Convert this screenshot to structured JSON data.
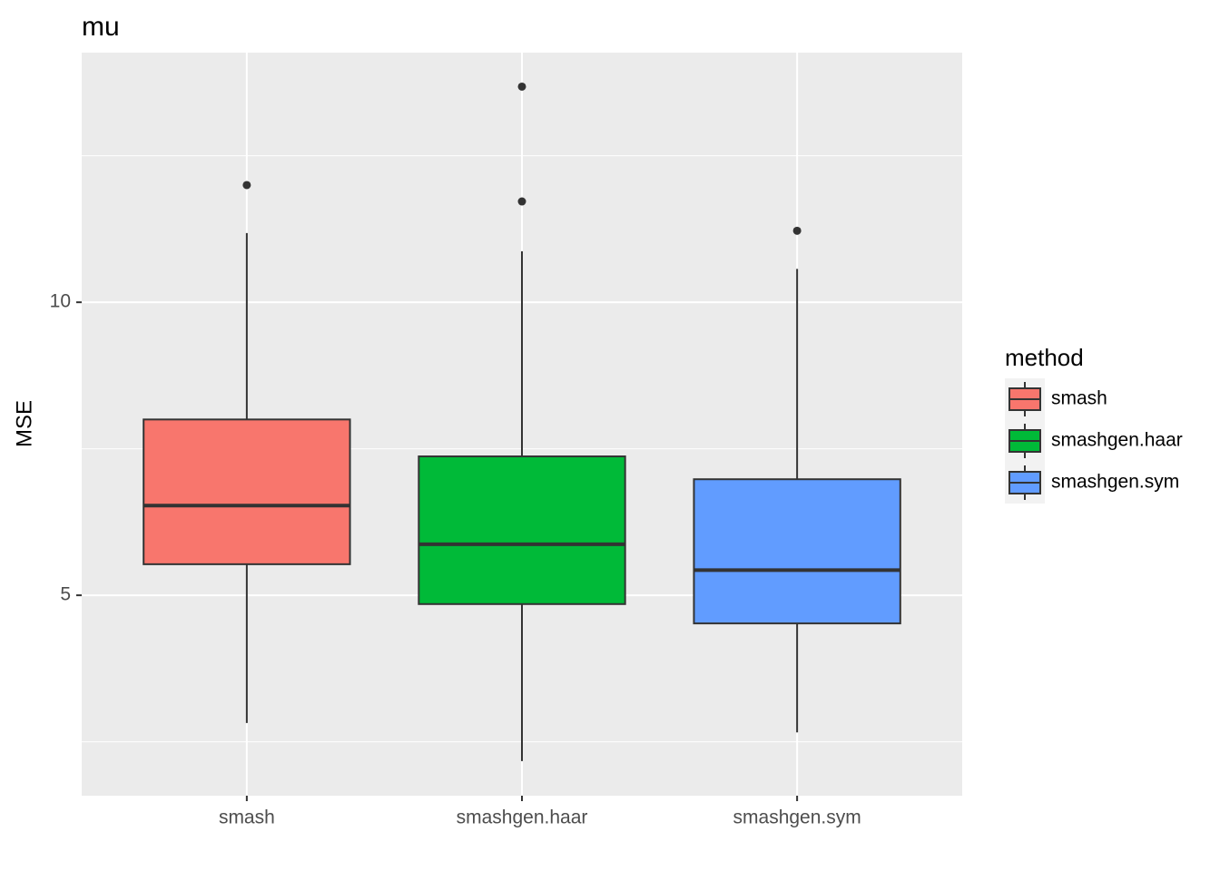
{
  "chart_data": {
    "type": "box",
    "title": "mu",
    "y_label": "MSE",
    "legend_title": "method",
    "categories": [
      "smash",
      "smashgen.haar",
      "smashgen.sym"
    ],
    "colors": [
      "#f8766d",
      "#00ba38",
      "#619cff"
    ],
    "boxes": [
      {
        "min": 2.82,
        "q1": 5.53,
        "median": 6.53,
        "q3": 8.0,
        "max": 11.18,
        "outliers": [
          12.0
        ]
      },
      {
        "min": 2.17,
        "q1": 4.85,
        "median": 5.87,
        "q3": 7.37,
        "max": 10.87,
        "outliers": [
          13.68,
          11.72
        ]
      },
      {
        "min": 2.66,
        "q1": 4.52,
        "median": 5.43,
        "q3": 6.98,
        "max": 10.57,
        "outliers": [
          11.22
        ]
      }
    ],
    "ylim": [
      1.58,
      14.26
    ],
    "yticks": [
      5,
      10
    ],
    "minor_yticks": [
      2.5,
      7.5,
      12.5
    ],
    "grid": true
  }
}
